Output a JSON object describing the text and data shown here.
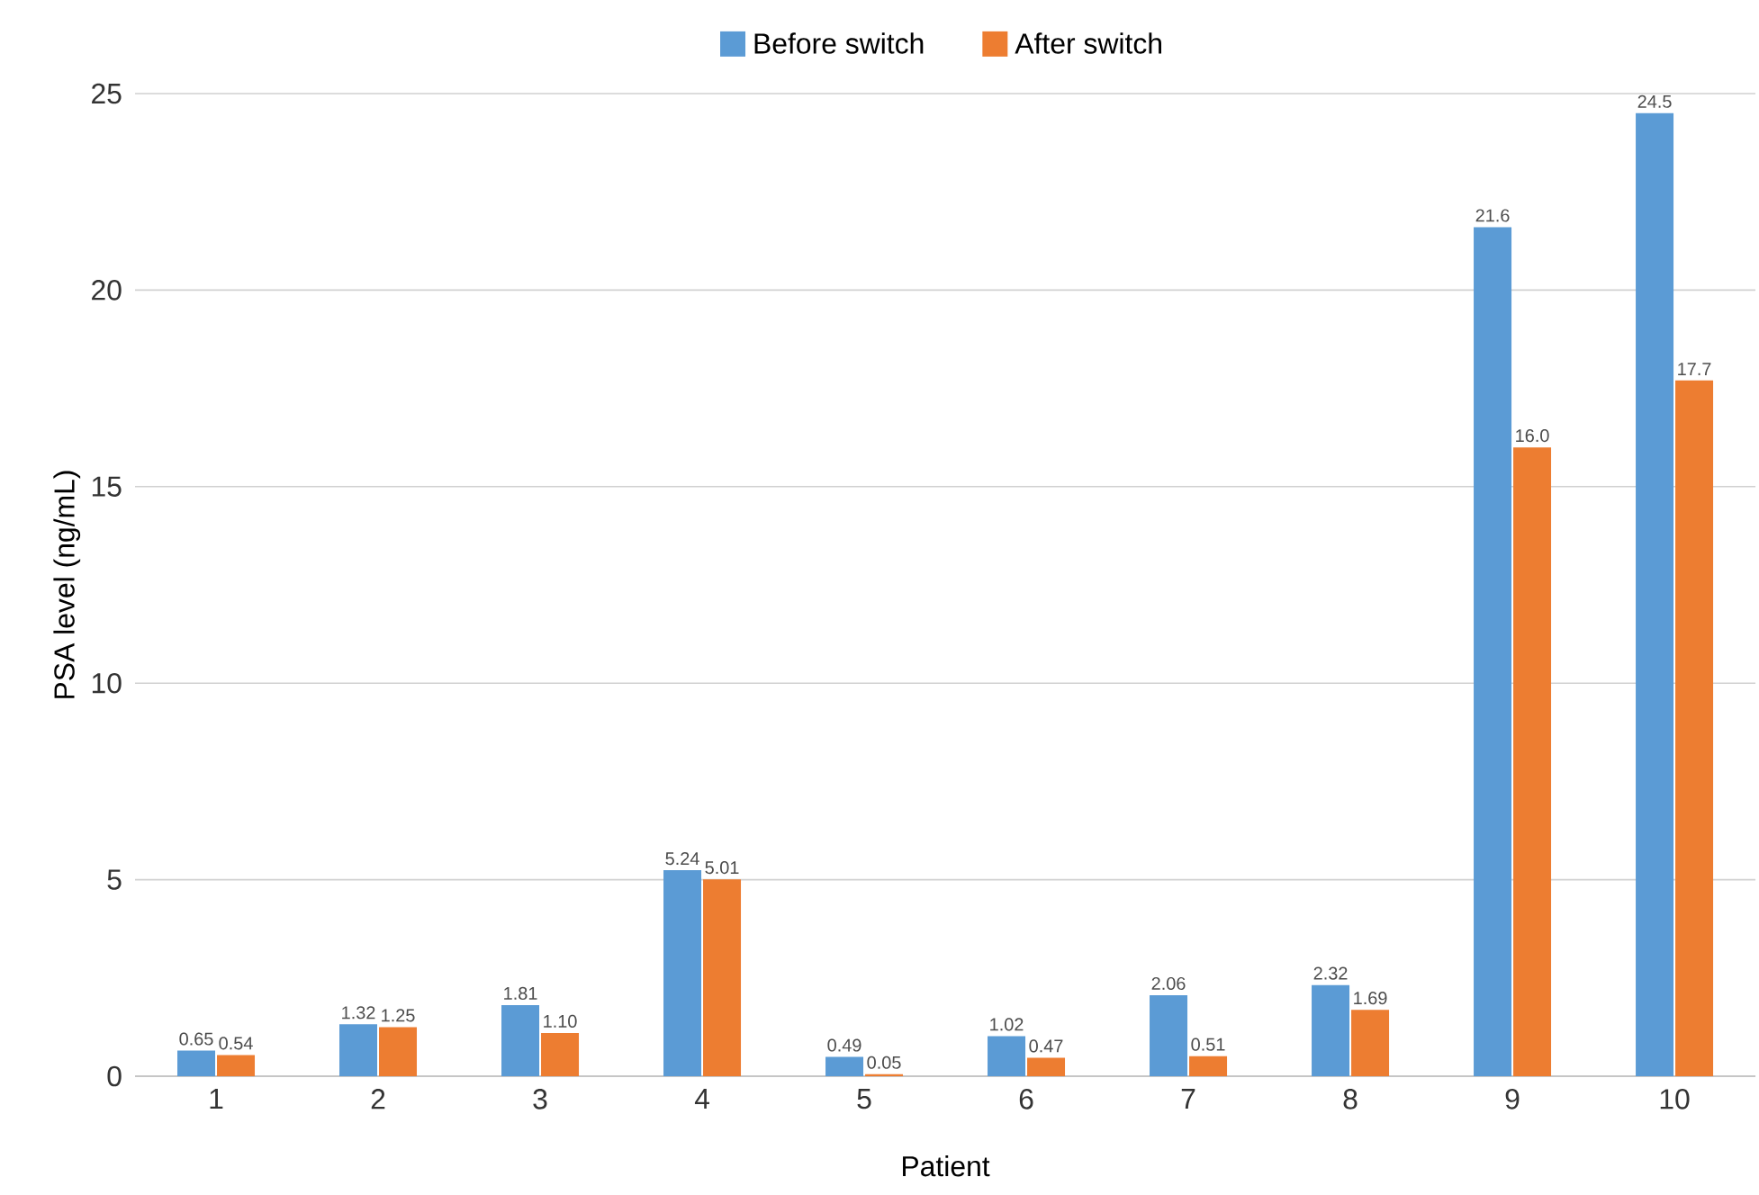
{
  "chart_data": {
    "type": "bar",
    "xlabel": "Patient",
    "ylabel": "PSA level (ng/mL)",
    "categories": [
      "1",
      "2",
      "3",
      "4",
      "5",
      "6",
      "7",
      "8",
      "9",
      "10"
    ],
    "series": [
      {
        "name": "Before switch",
        "color": "#5b9bd5",
        "values": [
          0.65,
          1.32,
          1.81,
          5.24,
          0.49,
          1.02,
          2.06,
          2.32,
          21.6,
          24.5
        ],
        "value_labels": [
          "0.65",
          "1.32",
          "1.81",
          "5.24",
          "0.49",
          "1.02",
          "2.06",
          "2.32",
          "21.6",
          "24.5"
        ]
      },
      {
        "name": "After switch",
        "color": "#ed7d31",
        "values": [
          0.54,
          1.25,
          1.1,
          5.01,
          0.05,
          0.47,
          0.51,
          1.69,
          16.0,
          17.7
        ],
        "value_labels": [
          "0.54",
          "1.25",
          "1.10",
          "5.01",
          "0.05",
          "0.47",
          "0.51",
          "1.69",
          "16.0",
          "17.7"
        ]
      }
    ],
    "ylim": [
      0,
      25
    ],
    "yticks": [
      0,
      5,
      10,
      15,
      20,
      25
    ],
    "grid": "y",
    "legend": "top"
  }
}
